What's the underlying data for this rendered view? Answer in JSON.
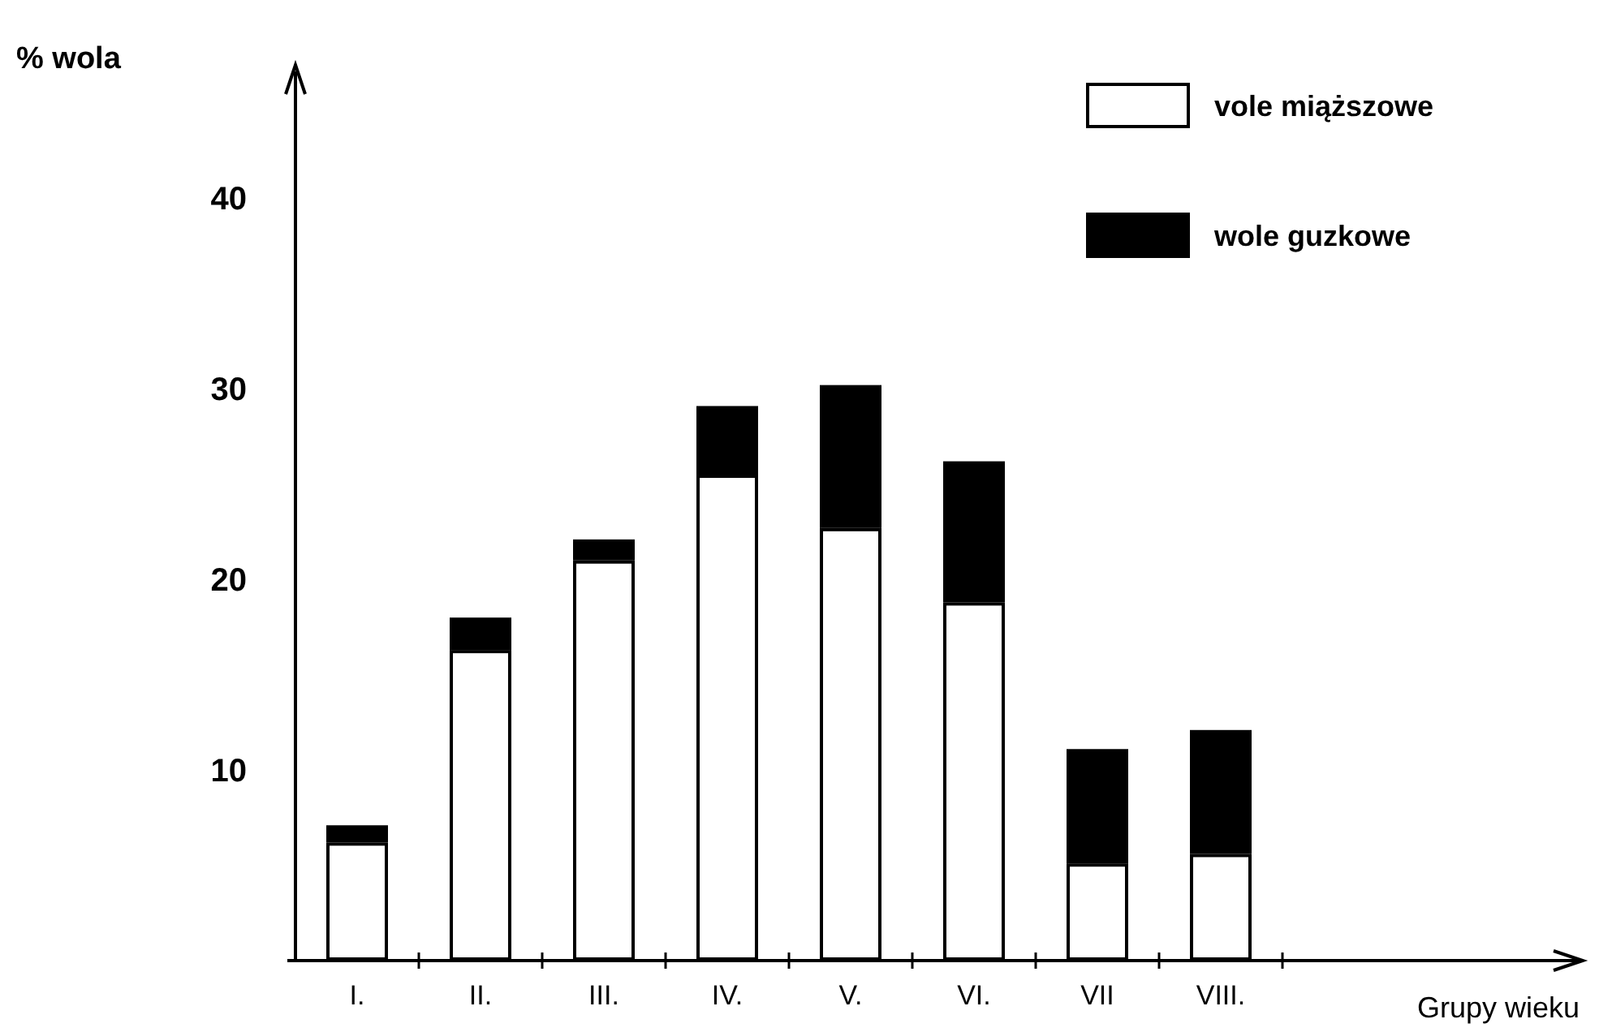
{
  "chart_data": {
    "type": "bar",
    "stacked": true,
    "xlabel": "Grupy wieku",
    "ylabel": "% wola",
    "categories": [
      "I.",
      "II.",
      "III.",
      "IV.",
      "V.",
      "VI.",
      "VII",
      "VIII."
    ],
    "series": [
      {
        "name": "vole miąższowe",
        "color": "#ffffff",
        "values": [
          6.2,
          16.3,
          21.0,
          25.5,
          22.7,
          18.8,
          5.1,
          5.6
        ]
      },
      {
        "name": "wole guzkowe",
        "color": "#000000",
        "values": [
          0.9,
          1.7,
          1.1,
          3.6,
          7.5,
          7.4,
          6.0,
          6.5
        ]
      }
    ],
    "ylim": [
      0,
      47
    ],
    "yticks": [
      10,
      20,
      30,
      40
    ],
    "legend": "top right"
  }
}
